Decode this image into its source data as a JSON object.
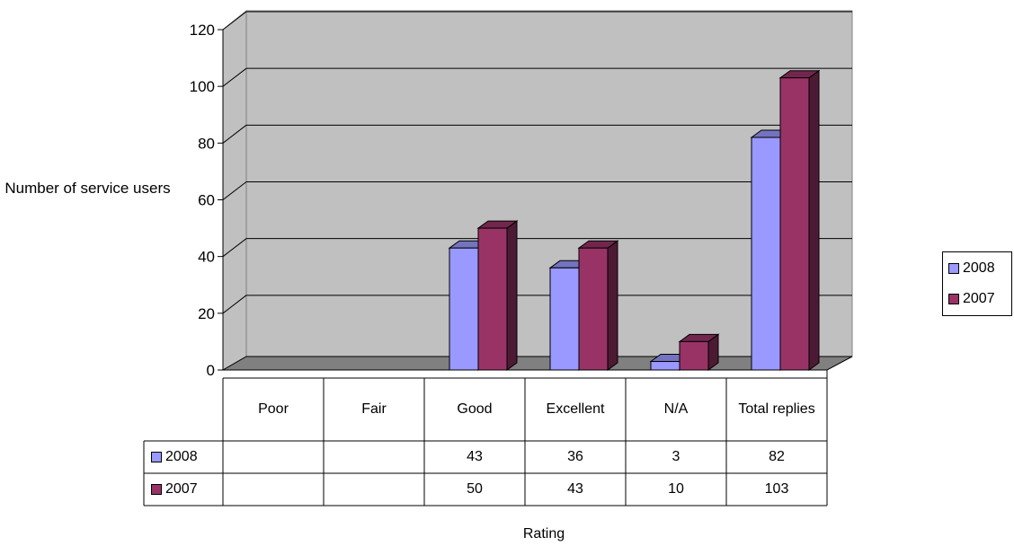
{
  "chart_data": {
    "type": "bar",
    "categories": [
      "Poor",
      "Fair",
      "Good",
      "Excellent",
      "N/A",
      "Total replies"
    ],
    "series": [
      {
        "name": "2008",
        "color": "#9999ff",
        "values": [
          null,
          null,
          43,
          36,
          3,
          82
        ]
      },
      {
        "name": "2007",
        "color": "#993366",
        "values": [
          null,
          null,
          50,
          43,
          10,
          103
        ]
      }
    ],
    "ylabel": "Number of service users",
    "xlabel": "Rating",
    "ylim": [
      0,
      120
    ],
    "yticks": [
      0,
      20,
      40,
      60,
      80,
      100,
      120
    ],
    "grid": true,
    "legend": "right",
    "data_table": true,
    "style": "3d-clustered-column"
  },
  "colors": {
    "wall": "#c0c0c0",
    "floor": "#808080",
    "series_2008": "#9999ff",
    "series_2007": "#993366"
  }
}
